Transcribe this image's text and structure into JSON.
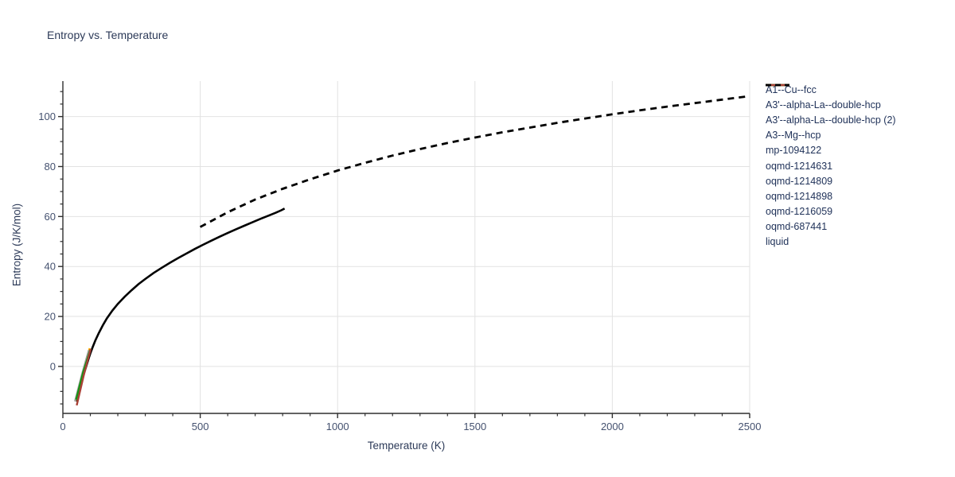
{
  "title": "Entropy vs. Temperature",
  "colors": {
    "title_text": "#2c3a58",
    "tick_text": "#44516f",
    "legend_text": "#21335a",
    "grid": "#e2e2e2",
    "axis": "#2f2f2f"
  },
  "chart_data": {
    "type": "line",
    "title": "Entropy vs. Temperature",
    "xlabel": "Temperature (K)",
    "ylabel": "Entropy (J/K/mol)",
    "xlim": [
      0,
      2500
    ],
    "ylim": [
      -18.8,
      114.2
    ],
    "x_ticks": [
      0,
      500,
      1000,
      1500,
      2000,
      2500
    ],
    "x_minor_step": 100,
    "y_ticks": [
      0,
      20,
      40,
      60,
      80,
      100
    ],
    "y_minor_step": 5,
    "grid": true,
    "legend_position": "outside-top-right",
    "series": [
      {
        "name": "A1--Cu--fcc",
        "color": "#000000",
        "dash": "solid",
        "width": 2.6,
        "points": [
          [
            48,
            -14
          ],
          [
            55,
            -11
          ],
          [
            62,
            -8.2
          ],
          [
            70,
            -5.2
          ],
          [
            78,
            -2.4
          ],
          [
            86,
            0.4
          ],
          [
            94,
            3.2
          ],
          [
            100,
            5.2
          ],
          [
            108,
            7.6
          ],
          [
            118,
            10.3
          ],
          [
            130,
            13.2
          ],
          [
            145,
            16.4
          ],
          [
            160,
            19.2
          ],
          [
            180,
            22.3
          ],
          [
            200,
            25
          ],
          [
            225,
            27.9
          ],
          [
            250,
            30.5
          ],
          [
            275,
            32.9
          ],
          [
            300,
            35
          ],
          [
            330,
            37.4
          ],
          [
            360,
            39.5
          ],
          [
            390,
            41.5
          ],
          [
            420,
            43.4
          ],
          [
            450,
            45.2
          ],
          [
            480,
            47
          ],
          [
            510,
            48.7
          ],
          [
            540,
            50.3
          ],
          [
            570,
            51.9
          ],
          [
            600,
            53.4
          ],
          [
            630,
            54.9
          ],
          [
            660,
            56.3
          ],
          [
            690,
            57.7
          ],
          [
            720,
            59.1
          ],
          [
            750,
            60.4
          ],
          [
            775,
            61.5
          ],
          [
            795,
            62.5
          ],
          [
            807,
            63.2
          ]
        ]
      },
      {
        "name": "A3'--alpha-La--double-hcp",
        "color": "#0000ff",
        "dash": "solid",
        "width": 2.4,
        "points": [
          [
            50,
            -12.6
          ],
          [
            75,
            -2.0
          ],
          [
            100,
            6.6
          ]
        ]
      },
      {
        "name": "A3'--alpha-La--double-hcp (2)",
        "color": "#ff0000",
        "dash": "solid",
        "width": 2.4,
        "points": [
          [
            50,
            -12.9
          ],
          [
            75,
            -2.3
          ],
          [
            100,
            6.4
          ]
        ]
      },
      {
        "name": "A3--Mg--hcp",
        "color": "#00ffff",
        "dash": "solid",
        "width": 2.4,
        "points": [
          [
            49,
            -13.1
          ],
          [
            74,
            -2.2
          ],
          [
            100,
            6.6
          ]
        ]
      },
      {
        "name": "mp-1094122",
        "color": "#ff00ff",
        "dash": "solid",
        "width": 2.4,
        "points": [
          [
            50,
            -12.7
          ],
          [
            75,
            -2.1
          ],
          [
            100,
            6.7
          ]
        ]
      },
      {
        "name": "oqmd-1214631",
        "color": "#ffbf00",
        "dash": "solid",
        "width": 2.4,
        "points": [
          [
            45.5,
            -13.7
          ],
          [
            71,
            -2.9
          ],
          [
            97.5,
            7.3
          ]
        ]
      },
      {
        "name": "oqmd-1214809",
        "color": "#ff9d00",
        "dash": "solid",
        "width": 2.4,
        "points": [
          [
            47,
            -13.5
          ],
          [
            72.5,
            -2.7
          ],
          [
            98.5,
            7.0
          ]
        ]
      },
      {
        "name": "oqmd-1214898",
        "color": "#a3a3a3",
        "dash": "solid",
        "width": 2.4,
        "points": [
          [
            44,
            -14.0
          ],
          [
            69,
            -3.4
          ],
          [
            94.5,
            6.5
          ]
        ]
      },
      {
        "name": "oqmd-1216059",
        "color": "#149414",
        "dash": "solid",
        "width": 2.4,
        "points": [
          [
            48,
            -13.3
          ],
          [
            73.5,
            -2.4
          ],
          [
            99,
            6.5
          ]
        ]
      },
      {
        "name": "oqmd-687441",
        "color": "#a94136",
        "dash": "solid",
        "width": 2.4,
        "points": [
          [
            50.5,
            -15.6
          ],
          [
            76,
            -3.6
          ],
          [
            101,
            7.0
          ]
        ]
      },
      {
        "name": "liquid",
        "color": "#000000",
        "dash": "dashed",
        "width": 2.8,
        "points": [
          [
            500,
            55.8
          ],
          [
            600,
            61.7
          ],
          [
            700,
            66.8
          ],
          [
            800,
            71.1
          ],
          [
            900,
            74.9
          ],
          [
            1000,
            78.4
          ],
          [
            1100,
            81.5
          ],
          [
            1200,
            84.4
          ],
          [
            1300,
            87.0
          ],
          [
            1400,
            89.4
          ],
          [
            1500,
            91.6
          ],
          [
            1600,
            93.7
          ],
          [
            1700,
            95.6
          ],
          [
            1800,
            97.5
          ],
          [
            1900,
            99.2
          ],
          [
            2000,
            100.9
          ],
          [
            2100,
            102.5
          ],
          [
            2200,
            104.0
          ],
          [
            2300,
            105.4
          ],
          [
            2400,
            106.8
          ],
          [
            2500,
            108.2
          ]
        ]
      }
    ]
  }
}
